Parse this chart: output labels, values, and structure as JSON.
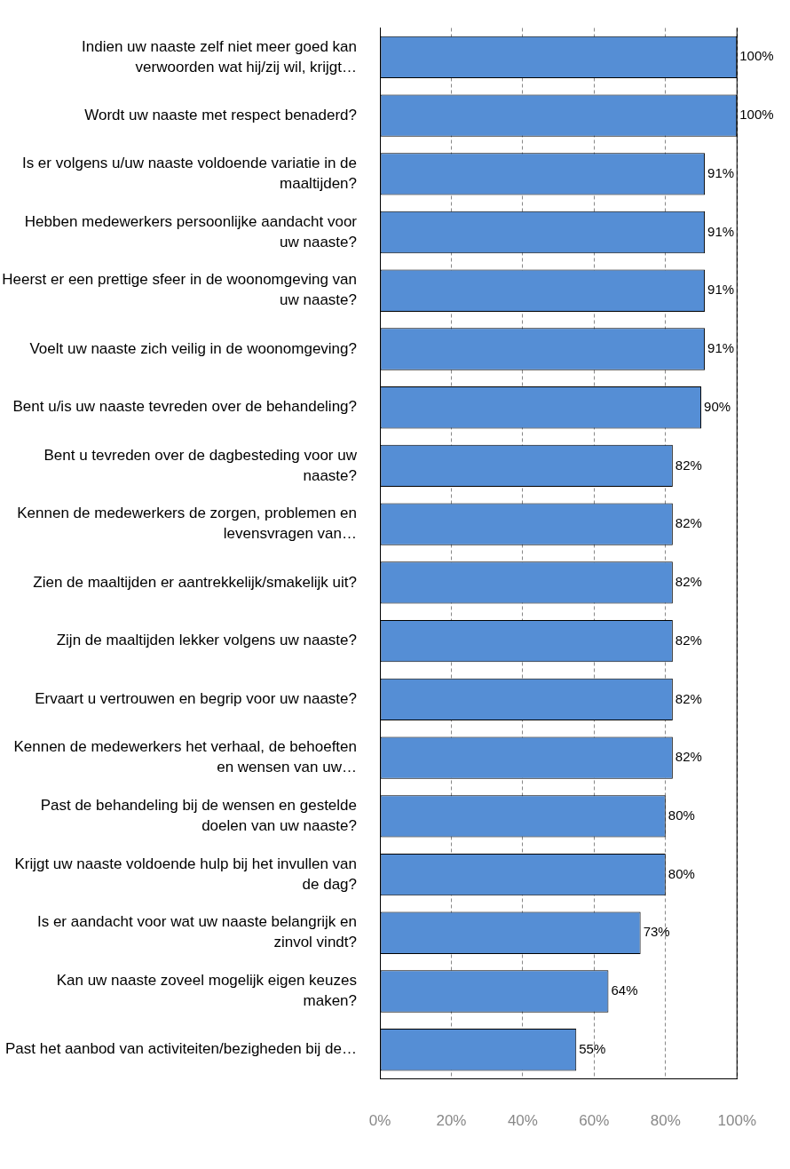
{
  "chart_data": {
    "type": "bar",
    "orientation": "horizontal",
    "categories": [
      "Indien uw naaste zelf niet meer goed kan verwoorden wat hij/zij wil, krijgt…",
      "Wordt uw naaste met respect benaderd?",
      "Is er volgens u/uw naaste voldoende variatie in de maaltijden?",
      "Hebben medewerkers persoonlijke aandacht voor uw naaste?",
      "Heerst er een prettige sfeer in de woonomgeving van uw naaste?",
      "Voelt uw naaste zich veilig in de woonomgeving?",
      "Bent u/is uw naaste tevreden over de behandeling?",
      "Bent u tevreden over de dagbesteding voor uw naaste?",
      "Kennen de medewerkers de zorgen, problemen en levensvragen van…",
      "Zien de maaltijden er aantrekkelijk/smakelijk uit?",
      "Zijn de maaltijden lekker volgens uw naaste?",
      "Ervaart u vertrouwen en begrip voor uw naaste?",
      "Kennen de medewerkers het verhaal, de behoeften en wensen van uw…",
      "Past de behandeling bij de wensen en gestelde doelen van uw naaste?",
      "Krijgt uw naaste voldoende hulp bij het invullen van de dag?",
      "Is er aandacht voor wat uw naaste belangrijk en zinvol vindt?",
      "Kan uw naaste zoveel mogelijk eigen keuzes maken?",
      "Past het aanbod van activiteiten/bezigheden bij de…"
    ],
    "values": [
      100,
      100,
      91,
      91,
      91,
      91,
      90,
      82,
      82,
      82,
      82,
      82,
      82,
      80,
      80,
      73,
      64,
      55
    ],
    "value_labels": [
      "100%",
      "100%",
      "91%",
      "91%",
      "91%",
      "91%",
      "90%",
      "82%",
      "82%",
      "82%",
      "82%",
      "82%",
      "82%",
      "80%",
      "80%",
      "73%",
      "64%",
      "55%"
    ],
    "color": "#558ed5",
    "xlim": [
      0,
      100
    ],
    "xticks": [
      {
        "value": 0,
        "label": "0%"
      },
      {
        "value": 20,
        "label": "20%"
      },
      {
        "value": 40,
        "label": "40%"
      },
      {
        "value": 60,
        "label": "60%"
      },
      {
        "value": 80,
        "label": "80%"
      },
      {
        "value": 100,
        "label": "100%"
      }
    ],
    "grid": "x",
    "legend": false
  }
}
